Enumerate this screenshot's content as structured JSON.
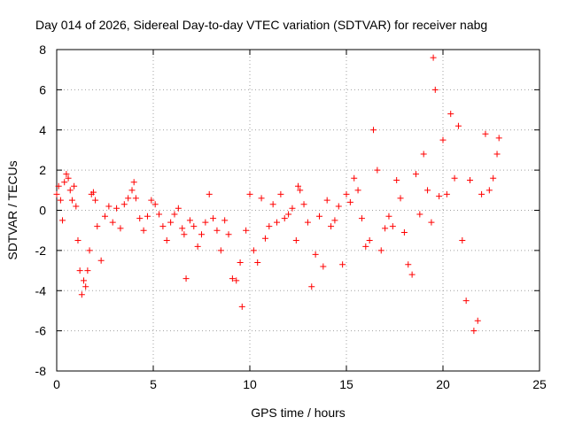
{
  "chart_data": {
    "type": "scatter",
    "title": "Day 014 of 2026, Sidereal Day-to-day VTEC variation (SDTVAR) for receiver nabg",
    "xlabel": "GPS time / hours",
    "ylabel": "SDTVAR / TECUs",
    "xlim": [
      0,
      25
    ],
    "ylim": [
      -8,
      8
    ],
    "xticks": [
      0,
      5,
      10,
      15,
      20,
      25
    ],
    "xtick_labels": [
      "0",
      "5",
      "10",
      "15",
      "20",
      "25"
    ],
    "yticks": [
      -8,
      -6,
      -4,
      -2,
      0,
      2,
      4,
      6,
      8
    ],
    "ytick_labels": [
      "-8",
      "-6",
      "-4",
      "-2",
      "0",
      "2",
      "4",
      "6",
      "8"
    ],
    "grid": true,
    "marker": "+",
    "color": "#ff0000",
    "series": [
      {
        "name": "SDTVAR",
        "x": [
          0.0,
          0.1,
          0.2,
          0.3,
          0.4,
          0.5,
          0.6,
          0.7,
          0.8,
          0.9,
          1.0,
          1.1,
          1.2,
          1.3,
          1.4,
          1.5,
          1.6,
          1.7,
          1.8,
          1.9,
          2.0,
          2.1,
          2.3,
          2.5,
          2.7,
          2.9,
          3.1,
          3.3,
          3.5,
          3.7,
          3.9,
          4.0,
          4.1,
          4.3,
          4.5,
          4.7,
          4.9,
          5.1,
          5.3,
          5.5,
          5.7,
          5.9,
          6.1,
          6.3,
          6.5,
          6.6,
          6.7,
          6.9,
          7.1,
          7.3,
          7.5,
          7.7,
          7.9,
          8.1,
          8.3,
          8.5,
          8.7,
          8.9,
          9.1,
          9.3,
          9.5,
          9.6,
          9.8,
          10.0,
          10.2,
          10.4,
          10.6,
          10.8,
          11.0,
          11.2,
          11.4,
          11.6,
          11.8,
          12.0,
          12.2,
          12.4,
          12.5,
          12.6,
          12.8,
          13.0,
          13.2,
          13.4,
          13.6,
          13.8,
          14.0,
          14.2,
          14.4,
          14.6,
          14.8,
          15.0,
          15.2,
          15.4,
          15.6,
          15.8,
          16.0,
          16.2,
          16.4,
          16.6,
          16.8,
          17.0,
          17.2,
          17.4,
          17.6,
          17.8,
          18.0,
          18.2,
          18.4,
          18.6,
          18.8,
          19.0,
          19.2,
          19.4,
          19.5,
          19.6,
          19.8,
          20.0,
          20.2,
          20.4,
          20.6,
          20.8,
          21.0,
          21.2,
          21.4,
          21.6,
          21.8,
          22.0,
          22.2,
          22.4,
          22.6,
          22.8,
          22.9
        ],
        "y": [
          0.8,
          1.2,
          0.5,
          -0.5,
          1.4,
          1.8,
          1.6,
          1.0,
          0.5,
          1.2,
          0.2,
          -1.5,
          -3.0,
          -4.2,
          -3.5,
          -3.8,
          -3.0,
          -2.0,
          0.8,
          0.9,
          0.5,
          -0.8,
          -2.5,
          -0.3,
          0.2,
          -0.6,
          0.1,
          -0.9,
          0.3,
          0.6,
          1.0,
          1.4,
          0.6,
          -0.4,
          -1.0,
          -0.3,
          0.5,
          0.3,
          -0.2,
          -0.8,
          -1.5,
          -0.6,
          -0.2,
          0.1,
          -0.9,
          -1.2,
          -3.4,
          -0.5,
          -0.8,
          -1.8,
          -1.2,
          -0.6,
          0.8,
          -0.4,
          -1.0,
          -2.0,
          -0.5,
          -1.2,
          -3.4,
          -3.5,
          -2.6,
          -4.8,
          -1.0,
          0.8,
          -2.0,
          -2.6,
          0.6,
          -1.4,
          -0.8,
          0.3,
          -0.6,
          0.8,
          -0.4,
          -0.2,
          0.1,
          -1.5,
          1.2,
          1.0,
          0.3,
          -0.6,
          -3.8,
          -2.2,
          -0.3,
          -2.8,
          0.5,
          -0.8,
          -0.5,
          0.2,
          -2.7,
          0.8,
          0.4,
          1.6,
          1.0,
          -0.4,
          -1.8,
          -1.5,
          4.0,
          2.0,
          -2.0,
          -0.9,
          -0.3,
          -0.8,
          1.5,
          0.6,
          -1.1,
          -2.7,
          -3.2,
          1.8,
          -0.2,
          2.8,
          1.0,
          -0.6,
          7.6,
          6.0,
          0.7,
          3.5,
          0.8,
          4.8,
          1.6,
          4.2,
          -1.5,
          -4.5,
          1.5,
          -6.0,
          -5.5,
          0.8,
          3.8,
          1.0,
          1.6,
          2.8,
          3.6
        ]
      }
    ]
  }
}
